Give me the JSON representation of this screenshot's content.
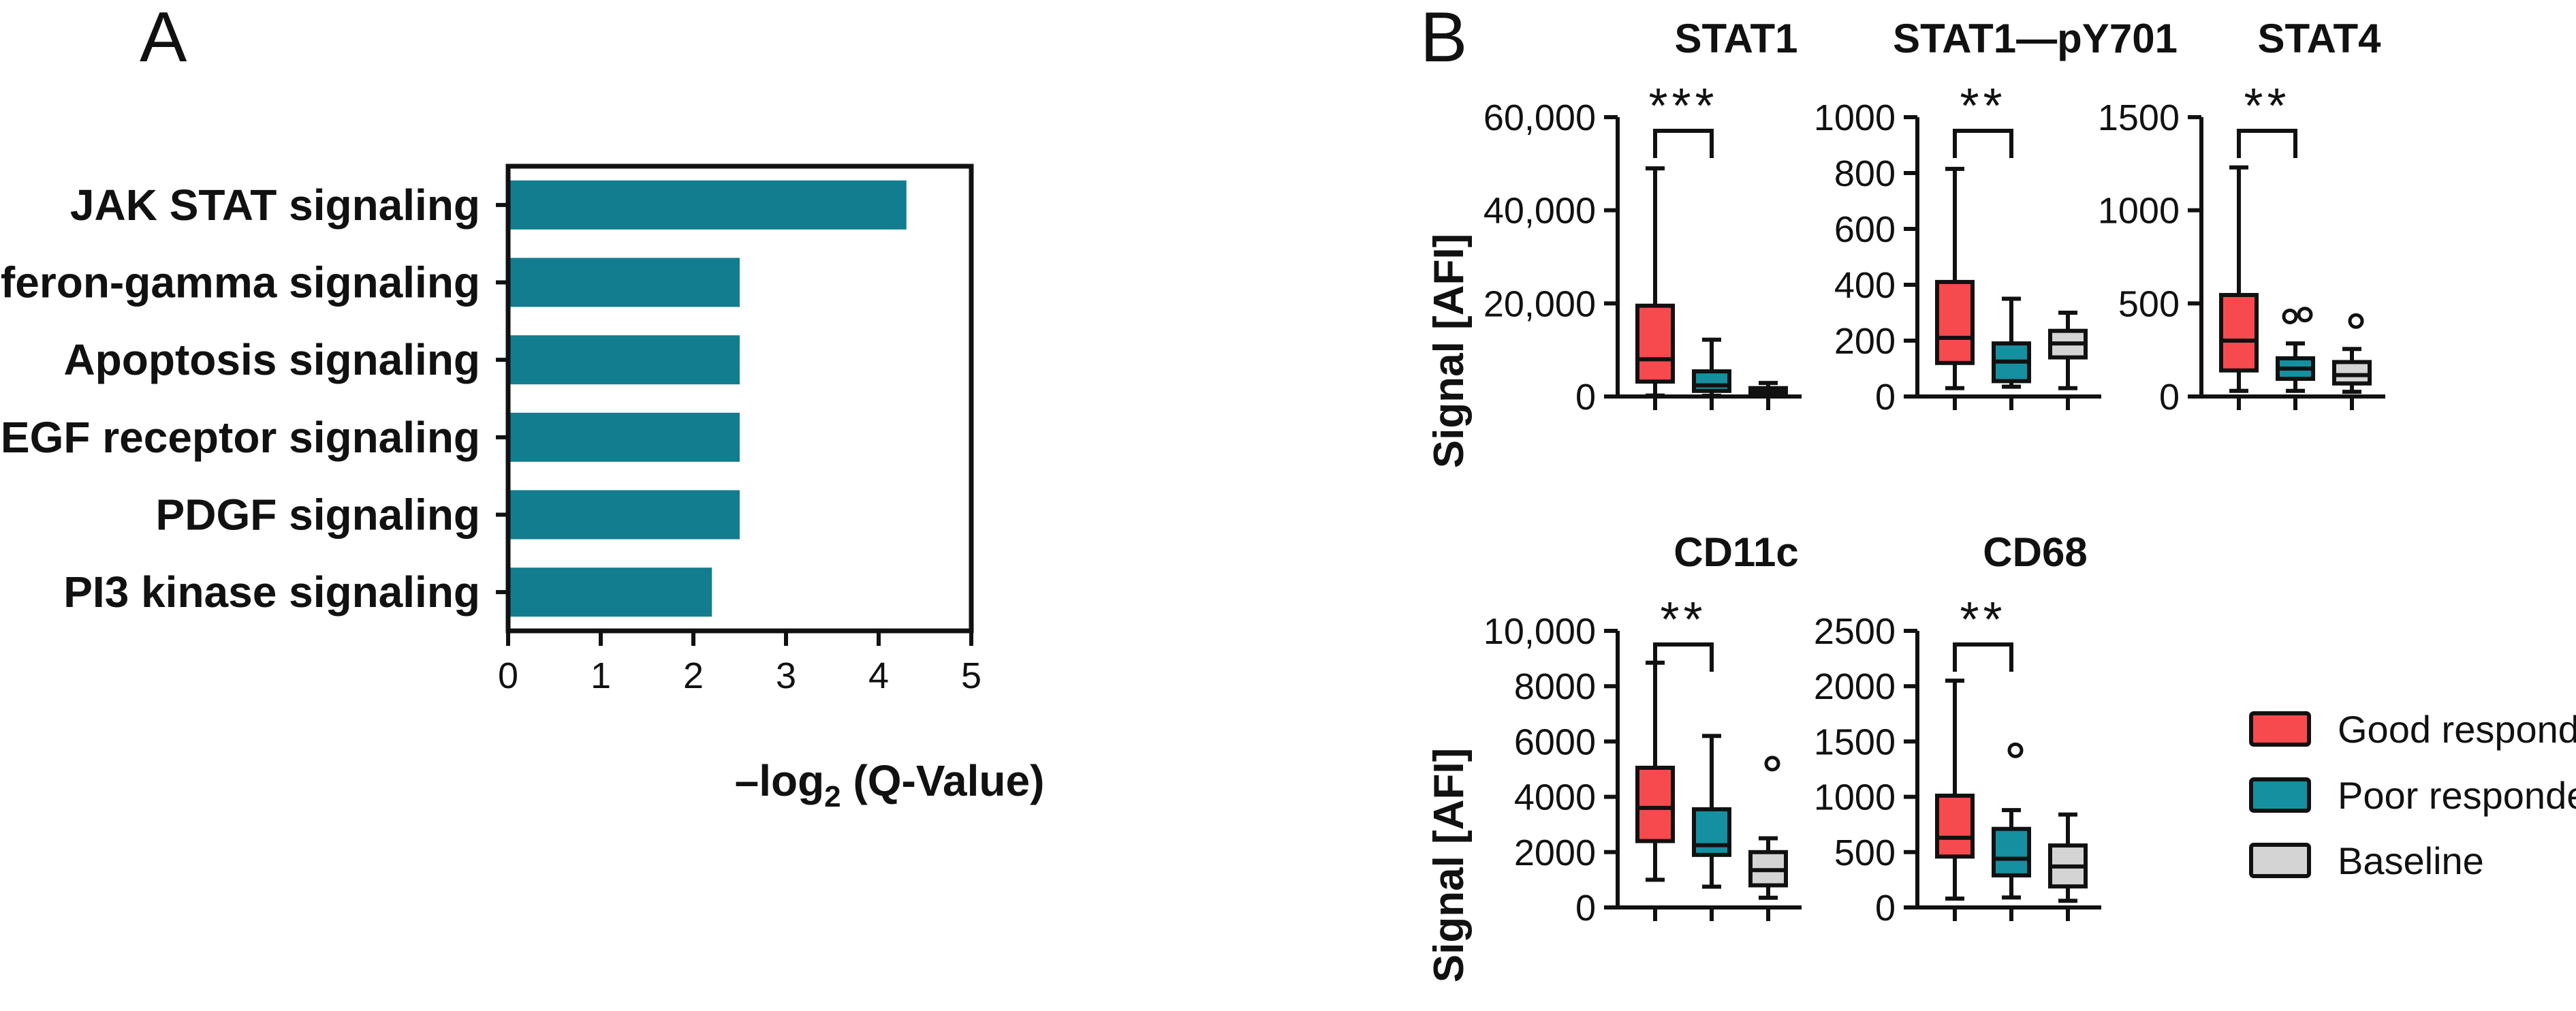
{
  "panel_a": {
    "letter": "A",
    "xlabel_main": "–log",
    "xlabel_sub": "2",
    "xlabel_tail": " (Q-Value)"
  },
  "panel_b": {
    "letter": "B",
    "y_axis_title": "Signal [AFI]"
  },
  "legend": [
    {
      "label": "Good responder",
      "color": "#f74a4f"
    },
    {
      "label": "Poor responder",
      "color": "#1590a0"
    },
    {
      "label": "Baseline",
      "color": "#d4d4d4"
    }
  ],
  "colors": {
    "bar": "#127d8f",
    "good": "#f74a4f",
    "poor": "#1590a0",
    "baseline": "#d4d4d4",
    "axis": "#111111"
  },
  "chart_data": [
    {
      "id": "A",
      "type": "bar",
      "orientation": "horizontal",
      "categories": [
        "JAK STAT signaling",
        "Interferon-gamma signaling",
        "Apoptosis signaling",
        "EGF receptor signaling",
        "PDGF signaling",
        "PI3 kinase signaling"
      ],
      "values": [
        4.3,
        2.5,
        2.5,
        2.5,
        2.5,
        2.2
      ],
      "xlabel": "–log2 (Q-Value)",
      "ylabel": "",
      "xlim": [
        0,
        5
      ],
      "xticks": [
        0,
        1,
        2,
        3,
        4,
        5
      ],
      "xtick_labels": [
        "0",
        "1",
        "2",
        "3",
        "4",
        "5"
      ]
    },
    {
      "id": "STAT1",
      "type": "box",
      "title": "STAT1",
      "ylabel": "Signal [AFI]",
      "ylim": [
        0,
        60000
      ],
      "yticks": [
        0,
        20000,
        40000,
        60000
      ],
      "ytick_labels": [
        "0",
        "20,000",
        "40,000",
        "60,000"
      ],
      "groups": [
        {
          "name": "Good responder",
          "min": 200,
          "q1": 3200,
          "median": 8000,
          "q3": 19500,
          "max": 49000,
          "outliers": []
        },
        {
          "name": "Poor responder",
          "min": 150,
          "q1": 1200,
          "median": 2400,
          "q3": 5400,
          "max": 12200,
          "outliers": []
        },
        {
          "name": "Baseline",
          "min": 100,
          "q1": 500,
          "median": 1100,
          "q3": 1800,
          "max": 2900,
          "outliers": []
        }
      ],
      "significance": "***"
    },
    {
      "id": "STAT1-pY701",
      "type": "box",
      "title": "STAT1—pY701",
      "ylabel": "",
      "ylim": [
        0,
        1000
      ],
      "yticks": [
        0,
        200,
        400,
        600,
        800,
        1000
      ],
      "ytick_labels": [
        "0",
        "200",
        "400",
        "600",
        "800",
        "1000"
      ],
      "groups": [
        {
          "name": "Good responder",
          "min": 30,
          "q1": 120,
          "median": 210,
          "q3": 410,
          "max": 815,
          "outliers": []
        },
        {
          "name": "Poor responder",
          "min": 35,
          "q1": 55,
          "median": 125,
          "q3": 190,
          "max": 350,
          "outliers": []
        },
        {
          "name": "Baseline",
          "min": 30,
          "q1": 140,
          "median": 190,
          "q3": 235,
          "max": 300,
          "outliers": []
        }
      ],
      "significance": "**"
    },
    {
      "id": "STAT4",
      "type": "box",
      "title": "STAT4",
      "ylabel": "",
      "ylim": [
        0,
        1500
      ],
      "yticks": [
        0,
        500,
        1000,
        1500
      ],
      "ytick_labels": [
        "0",
        "500",
        "1000",
        "1500"
      ],
      "groups": [
        {
          "name": "Good responder",
          "min": 30,
          "q1": 140,
          "median": 300,
          "q3": 545,
          "max": 1230,
          "outliers": []
        },
        {
          "name": "Poor responder",
          "min": 30,
          "q1": 95,
          "median": 150,
          "q3": 205,
          "max": 285,
          "outliers": [
            430,
            440
          ]
        },
        {
          "name": "Baseline",
          "min": 25,
          "q1": 70,
          "median": 115,
          "q3": 185,
          "max": 255,
          "outliers": [
            405
          ]
        }
      ],
      "significance": "**"
    },
    {
      "id": "CD11c",
      "type": "box",
      "title": "CD11c",
      "ylabel": "Signal [AFI]",
      "ylim": [
        0,
        10000
      ],
      "yticks": [
        0,
        2000,
        4000,
        6000,
        8000,
        10000
      ],
      "ytick_labels": [
        "0",
        "2000",
        "4000",
        "6000",
        "8000",
        "10,000"
      ],
      "groups": [
        {
          "name": "Good responder",
          "min": 1000,
          "q1": 2400,
          "median": 3600,
          "q3": 5050,
          "max": 8850,
          "outliers": []
        },
        {
          "name": "Poor responder",
          "min": 750,
          "q1": 1900,
          "median": 2250,
          "q3": 3550,
          "max": 6200,
          "outliers": []
        },
        {
          "name": "Baseline",
          "min": 350,
          "q1": 800,
          "median": 1350,
          "q3": 2000,
          "max": 2500,
          "outliers": [
            5200
          ]
        }
      ],
      "significance": "**"
    },
    {
      "id": "CD68",
      "type": "box",
      "title": "CD68",
      "ylabel": "",
      "ylim": [
        0,
        2500
      ],
      "yticks": [
        0,
        500,
        1000,
        1500,
        2000,
        2500
      ],
      "ytick_labels": [
        "0",
        "500",
        "1000",
        "1500",
        "2000",
        "2500"
      ],
      "groups": [
        {
          "name": "Good responder",
          "min": 80,
          "q1": 460,
          "median": 630,
          "q3": 1010,
          "max": 2050,
          "outliers": []
        },
        {
          "name": "Poor responder",
          "min": 90,
          "q1": 290,
          "median": 440,
          "q3": 710,
          "max": 880,
          "outliers": [
            1420
          ]
        },
        {
          "name": "Baseline",
          "min": 60,
          "q1": 190,
          "median": 370,
          "q3": 560,
          "max": 840,
          "outliers": []
        }
      ],
      "significance": "**"
    }
  ]
}
